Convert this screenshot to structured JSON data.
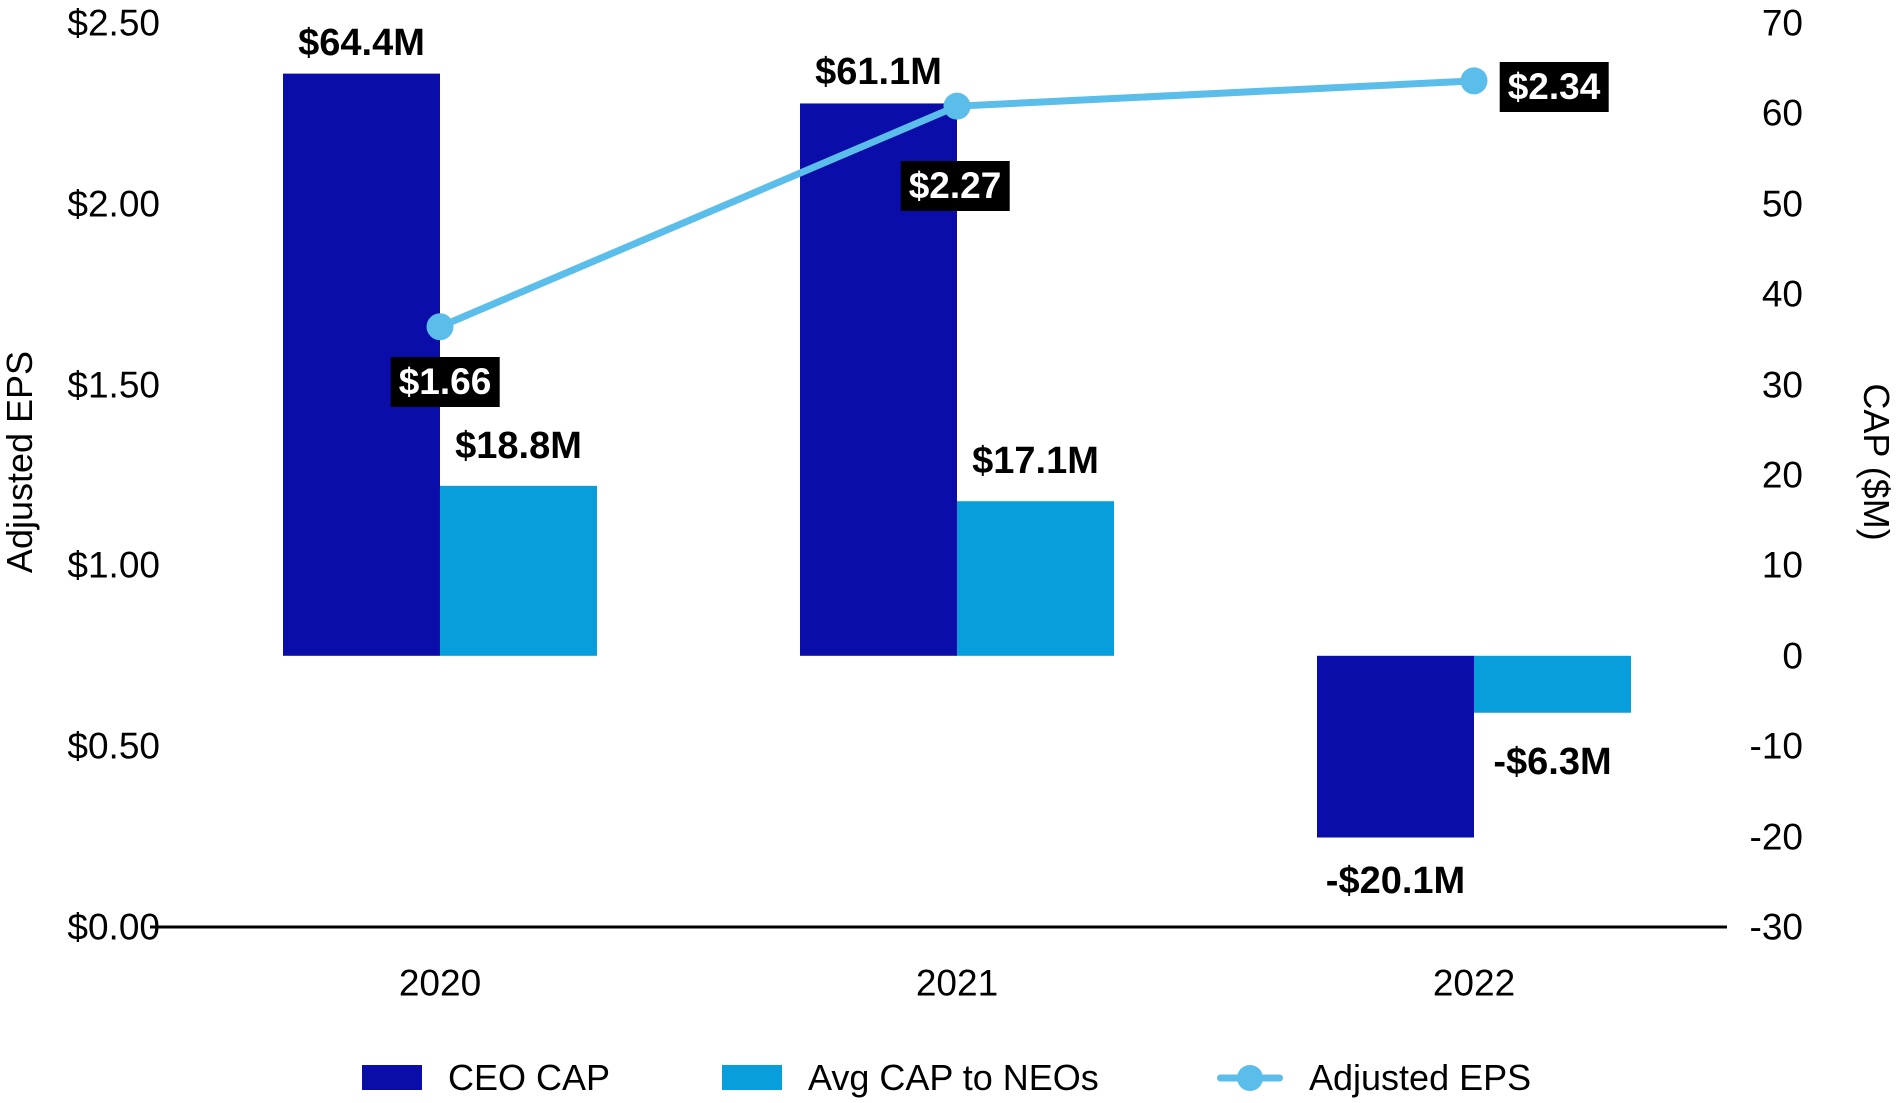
{
  "chart_data": {
    "type": "bar",
    "subtype": "combo-bar-line-dual-axis",
    "categories": [
      "2020",
      "2021",
      "2022"
    ],
    "series": [
      {
        "name": "CEO CAP",
        "type": "bar",
        "axis": "right",
        "values": [
          64.4,
          61.1,
          -20.1
        ],
        "labels": [
          "$64.4M",
          "$61.1M",
          "-$20.1M"
        ],
        "color": "#0B0DA8"
      },
      {
        "name": "Avg CAP to NEOs",
        "type": "bar",
        "axis": "right",
        "values": [
          18.8,
          17.1,
          -6.3
        ],
        "labels": [
          "$18.8M",
          "$17.1M",
          "-$6.3M"
        ],
        "color": "#089EDC"
      },
      {
        "name": "Adjusted EPS",
        "type": "line",
        "axis": "left",
        "values": [
          1.66,
          2.27,
          2.34
        ],
        "labels": [
          "$1.66",
          "$2.27",
          "$2.34"
        ],
        "color": "#5BBDE9"
      }
    ],
    "left_axis": {
      "title": "Adjusted EPS",
      "min": 0,
      "max": 2.5,
      "ticks": [
        "$2.50",
        "$2.00",
        "$1.50",
        "$1.00",
        "$0.50",
        "$0.00"
      ]
    },
    "right_axis": {
      "title": "CAP ($M)",
      "min": -30,
      "max": 70,
      "ticks": [
        "70",
        "60",
        "50",
        "40",
        "30",
        "20",
        "10",
        "0",
        "-10",
        "-20",
        "-30"
      ]
    },
    "grid": false,
    "legend_position": "bottom",
    "axis_line_color": "#000000",
    "data_label_box": {
      "bg": "#000000",
      "text_color": "#FFFFFF"
    },
    "background": "#FFFFFF"
  }
}
